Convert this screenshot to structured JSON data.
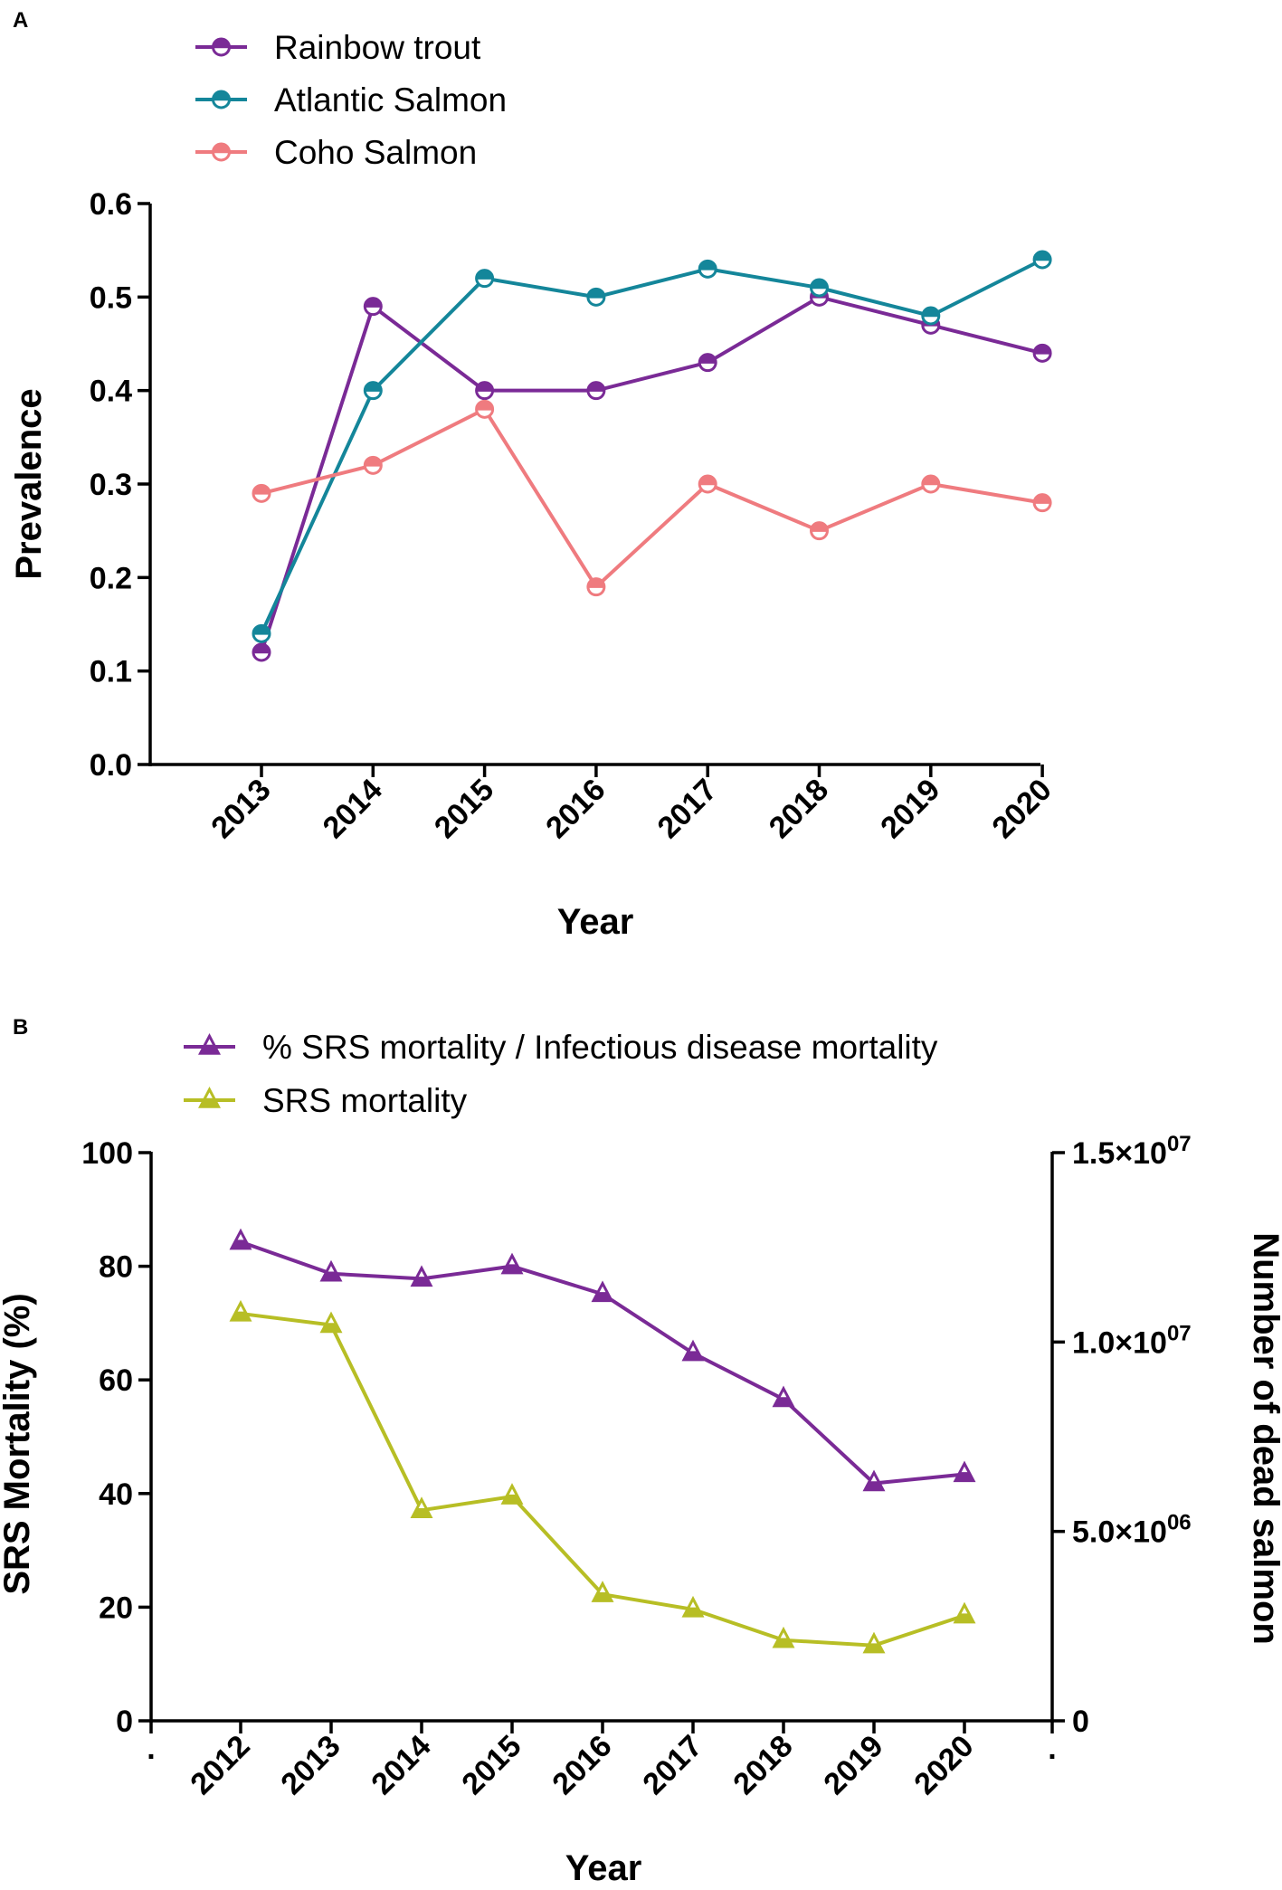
{
  "colors": {
    "rainbow_trout": "#7a2a96",
    "atlantic_salmon": "#14869a",
    "coho_salmon": "#ef7b7f",
    "srs_percent": "#7a2a96",
    "srs_mortality": "#b7be25",
    "axis": "#000000"
  },
  "chart_data": [
    {
      "panel": "A",
      "type": "line",
      "title": "",
      "xlabel": "Year",
      "ylabel": "Prevalence",
      "categories": [
        "2013",
        "2014",
        "2015",
        "2016",
        "2017",
        "2018",
        "2019",
        "2020"
      ],
      "ylim": [
        0,
        0.6
      ],
      "yticks": [
        "0.0",
        "0.1",
        "0.2",
        "0.3",
        "0.4",
        "0.5",
        "0.6"
      ],
      "grid": false,
      "legend_position": "top-left",
      "series": [
        {
          "name": "Rainbow trout",
          "color": "#7a2a96",
          "marker": "half-filled-circle",
          "values": [
            0.12,
            0.49,
            0.4,
            0.4,
            0.43,
            0.5,
            0.47,
            0.44
          ]
        },
        {
          "name": "Atlantic Salmon",
          "color": "#14869a",
          "marker": "half-filled-circle",
          "values": [
            0.14,
            0.4,
            0.52,
            0.5,
            0.53,
            0.51,
            0.48,
            0.54
          ]
        },
        {
          "name": "Coho Salmon",
          "color": "#ef7b7f",
          "marker": "half-filled-circle",
          "values": [
            0.29,
            0.32,
            0.38,
            0.19,
            0.3,
            0.25,
            0.3,
            0.28
          ]
        }
      ]
    },
    {
      "panel": "B",
      "type": "line",
      "title": "",
      "xlabel": "Year",
      "ylabel": "SRS Mortality (%)",
      "ylabel_right": "Number of dead salmon",
      "categories": [
        "2012",
        "2013",
        "2014",
        "2015",
        "2016",
        "2017",
        "2018",
        "2019",
        "2020"
      ],
      "x_edge_labels": [
        ".",
        "."
      ],
      "ylim": [
        0,
        100
      ],
      "yticks": [
        "0",
        "20",
        "40",
        "60",
        "80",
        "100"
      ],
      "ylim_right": [
        0,
        15000000
      ],
      "yticks_right": [
        {
          "value": 0,
          "mantissa": "0",
          "exponent": ""
        },
        {
          "value": 5000000,
          "mantissa": "5.0×10",
          "exponent": "06"
        },
        {
          "value": 10000000,
          "mantissa": "1.0×10",
          "exponent": "07"
        },
        {
          "value": 15000000,
          "mantissa": "1.5×10",
          "exponent": "07"
        }
      ],
      "grid": false,
      "legend_position": "top-left",
      "series": [
        {
          "name": "% SRS mortality / Infectious disease mortality",
          "color": "#7a2a96",
          "marker": "half-filled-triangle",
          "axis": "left",
          "values": [
            84.3,
            78.7,
            77.8,
            80.0,
            75.1,
            64.7,
            56.6,
            41.8,
            43.4
          ]
        },
        {
          "name": "SRS mortality",
          "color": "#b7be25",
          "marker": "half-filled-triangle",
          "axis": "right",
          "values": [
            10750000,
            10450000,
            5560000,
            5920000,
            3340000,
            2940000,
            2130000,
            1990000,
            2780000
          ]
        }
      ]
    }
  ]
}
